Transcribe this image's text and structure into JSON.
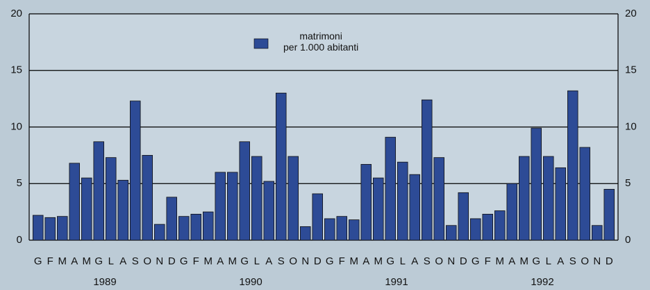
{
  "chart_data": {
    "type": "bar",
    "categories": [
      "G",
      "F",
      "M",
      "A",
      "M",
      "G",
      "L",
      "A",
      "S",
      "O",
      "N",
      "D",
      "G",
      "F",
      "M",
      "A",
      "M",
      "G",
      "L",
      "A",
      "S",
      "O",
      "N",
      "D",
      "G",
      "F",
      "M",
      "A",
      "M",
      "G",
      "L",
      "A",
      "S",
      "O",
      "N",
      "D",
      "G",
      "F",
      "M",
      "A",
      "M",
      "G",
      "L",
      "A",
      "S",
      "O",
      "N",
      "D"
    ],
    "years": [
      "1989",
      "1990",
      "1991",
      "1992"
    ],
    "series": [
      {
        "name": "matrimoni\nper 1.000 abitanti",
        "color": "#2d4b96",
        "values": [
          2.2,
          2.0,
          2.1,
          6.8,
          5.5,
          8.7,
          7.3,
          5.3,
          12.3,
          7.5,
          1.4,
          3.8,
          2.1,
          2.3,
          2.5,
          6.0,
          6.0,
          8.7,
          7.4,
          5.2,
          13.0,
          7.4,
          1.2,
          4.1,
          1.9,
          2.1,
          1.8,
          6.7,
          5.5,
          9.1,
          6.9,
          5.8,
          12.4,
          7.3,
          1.3,
          4.2,
          1.9,
          2.3,
          2.6,
          5.0,
          7.4,
          9.9,
          7.4,
          6.4,
          13.2,
          8.2,
          1.3,
          4.5
        ]
      }
    ],
    "ylim": [
      0,
      20
    ],
    "yticks": [
      0,
      5,
      10,
      15,
      20
    ],
    "grid": true
  }
}
